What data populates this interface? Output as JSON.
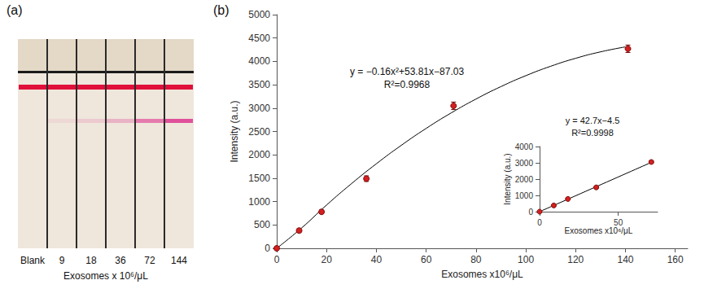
{
  "chart_data": [
    {
      "panel": "(a)",
      "type": "strip",
      "categories": [
        "Blank",
        "9",
        "18",
        "36",
        "72",
        "144"
      ],
      "xlabel": "Exosomes x 10⁶/μL"
    },
    {
      "panel": "(b)",
      "type": "scatter",
      "xlabel": "Exosomes x10⁶/μL",
      "ylabel": "Intensity (a.u.)",
      "x": [
        0,
        9,
        18,
        36,
        71,
        141
      ],
      "values": [
        0,
        380,
        780,
        1490,
        3050,
        4270
      ],
      "errors": [
        30,
        40,
        40,
        60,
        80,
        80
      ],
      "color": "#d42020",
      "xlim": [
        0,
        165
      ],
      "xticks": [
        0,
        20,
        40,
        60,
        80,
        100,
        120,
        140,
        160
      ],
      "ylim": [
        0,
        5000
      ],
      "yticks": [
        0,
        500,
        1000,
        1500,
        2000,
        2500,
        3000,
        3500,
        4000,
        4500,
        5000
      ],
      "grid": false,
      "fit": {
        "x": [
          0,
          10,
          20,
          30,
          40,
          50,
          60,
          70,
          80,
          90,
          100,
          110,
          120,
          130,
          140
        ],
        "values": [
          0,
          435,
          925,
          1383,
          1809,
          2203,
          2566,
          2896,
          3194,
          3460,
          3694,
          3896,
          4066,
          4204,
          4310
        ],
        "color": "#000000"
      },
      "annotations": [
        "y = −0.16x²+53.81x−87.03",
        "R²=0.9968"
      ],
      "inset": {
        "type": "scatter",
        "xlabel": "Exosomes x10⁶/μL",
        "ylabel": "Intensity (a.u.)",
        "x": [
          0,
          9,
          18,
          36,
          71
        ],
        "values": [
          0,
          380,
          780,
          1490,
          3050
        ],
        "errors": [
          30,
          40,
          40,
          60,
          80
        ],
        "color": "#d42020",
        "xlim": [
          0,
          75
        ],
        "xticks": [
          0,
          50
        ],
        "ylim": [
          0,
          4000
        ],
        "yticks": [
          0,
          1000,
          2000,
          3000,
          4000
        ],
        "grid": false,
        "fit": {
          "x": [
            0,
            72
          ],
          "values": [
            0,
            3070
          ],
          "color": "#000000"
        },
        "annotations": [
          "y = 42.7x−4.5",
          "R²=0.9998"
        ]
      }
    }
  ]
}
